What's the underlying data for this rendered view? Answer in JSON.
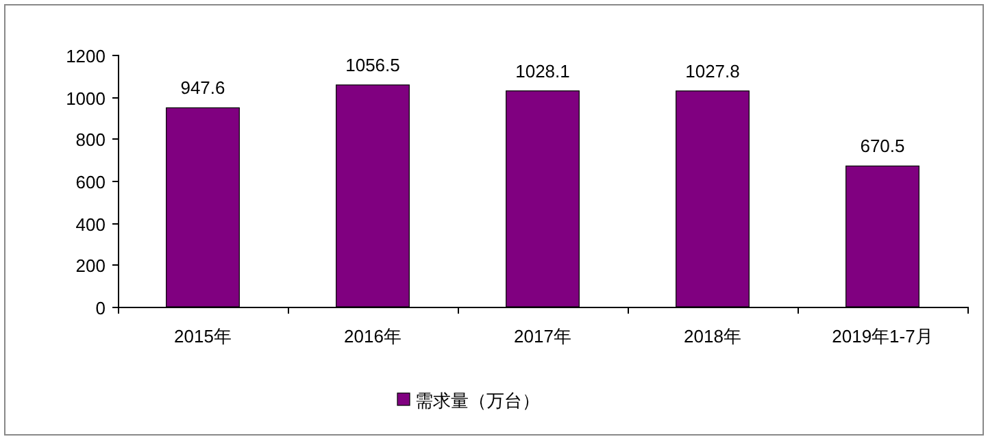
{
  "chart_data": {
    "type": "bar",
    "categories": [
      "2015年",
      "2016年",
      "2017年",
      "2018年",
      "2019年1-7月"
    ],
    "series": [
      {
        "name": "需求量（万台）",
        "color": "#800080",
        "values": [
          947.6,
          1056.5,
          1028.1,
          1027.8,
          670.5
        ]
      }
    ],
    "ylim": [
      0,
      1200
    ],
    "yticks": [
      0,
      200,
      400,
      600,
      800,
      1000,
      1200
    ],
    "data_labels": true,
    "legend": "bottom",
    "grid": false
  }
}
